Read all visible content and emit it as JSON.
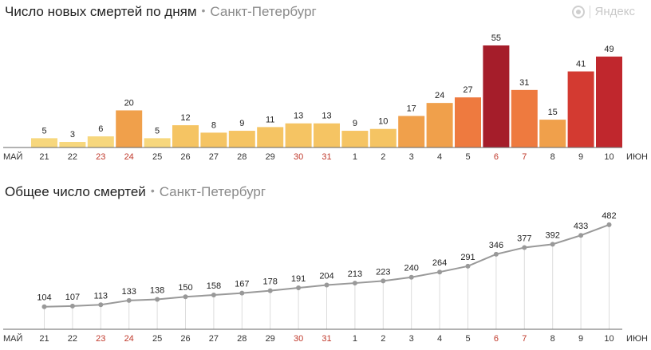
{
  "brand": {
    "name": "Яндекс",
    "icon": "yandex-logo-icon"
  },
  "chart_data": [
    {
      "type": "bar",
      "title": "Число новых смертей по дням",
      "subtitle": "Санкт-Петербург",
      "categories": [
        "21",
        "22",
        "23",
        "24",
        "25",
        "26",
        "27",
        "28",
        "29",
        "30",
        "31",
        "1",
        "2",
        "3",
        "4",
        "5",
        "6",
        "7",
        "8",
        "9",
        "10"
      ],
      "weekend_categories": [
        "23",
        "24",
        "30",
        "31",
        "6",
        "7"
      ],
      "month_start": "МАЙ",
      "month_end": "ИЮН",
      "values": [
        5,
        3,
        6,
        20,
        5,
        12,
        8,
        9,
        11,
        13,
        13,
        9,
        10,
        17,
        24,
        27,
        55,
        31,
        15,
        41,
        49
      ],
      "colors": [
        "#f7d77d",
        "#f7d77d",
        "#f7d77d",
        "#f0a04b",
        "#f7d77d",
        "#f5c463",
        "#f5c463",
        "#f5c463",
        "#f5c463",
        "#f5c463",
        "#f5c463",
        "#f5c463",
        "#f5c463",
        "#f0a04b",
        "#f0a04b",
        "#ee7a3f",
        "#a51d2a",
        "#ee7a3f",
        "#f0a04b",
        "#d33a31",
        "#c0272d"
      ],
      "ylim": [
        0,
        58
      ]
    },
    {
      "type": "line",
      "title": "Общее число смертей",
      "subtitle": "Санкт-Петербург",
      "categories": [
        "21",
        "22",
        "23",
        "24",
        "25",
        "26",
        "27",
        "28",
        "29",
        "30",
        "31",
        "1",
        "2",
        "3",
        "4",
        "5",
        "6",
        "7",
        "8",
        "9",
        "10"
      ],
      "weekend_categories": [
        "23",
        "24",
        "30",
        "31",
        "6",
        "7"
      ],
      "month_start": "МАЙ",
      "month_end": "ИЮН",
      "values": [
        104,
        107,
        113,
        133,
        138,
        150,
        158,
        167,
        178,
        191,
        204,
        213,
        223,
        240,
        264,
        291,
        346,
        377,
        392,
        433,
        482
      ],
      "line_color": "#999999",
      "ylim": [
        0,
        500
      ]
    }
  ]
}
